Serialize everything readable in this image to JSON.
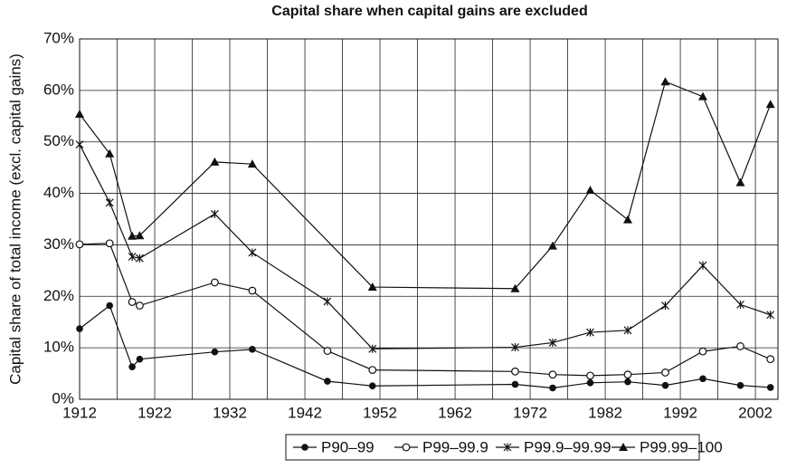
{
  "chart_data": {
    "type": "line",
    "title": "Capital share when capital gains are excluded",
    "y_label": "Capital share of total income (excl. capital gains)",
    "x": [
      1912,
      1916,
      1919,
      1920,
      1930,
      1935,
      1945,
      1951,
      1970,
      1975,
      1980,
      1985,
      1990,
      1995,
      2000,
      2004
    ],
    "series": [
      {
        "name": "P90–99",
        "color": "#111111",
        "marker": "circle-filled",
        "values": [
          13.7,
          18.2,
          6.3,
          7.8,
          9.2,
          9.7,
          3.5,
          2.6,
          2.9,
          2.2,
          3.2,
          3.4,
          2.7,
          4.0,
          2.7,
          2.3
        ]
      },
      {
        "name": "P99–99.9",
        "color": "#111111",
        "marker": "circle-open",
        "values": [
          30.1,
          30.3,
          18.9,
          18.2,
          22.7,
          21.1,
          9.4,
          5.7,
          5.4,
          4.8,
          4.6,
          4.8,
          5.2,
          9.3,
          10.3,
          7.8
        ]
      },
      {
        "name": "P99.9–99.99",
        "color": "#111111",
        "marker": "star",
        "values": [
          49.5,
          38.2,
          27.7,
          27.4,
          36.0,
          28.5,
          19.0,
          9.8,
          10.1,
          11.0,
          13.0,
          13.4,
          18.2,
          26.0,
          18.4,
          16.4
        ]
      },
      {
        "name": "P99.99–100",
        "color": "#111111",
        "marker": "triangle",
        "x": [
          1912,
          1916,
          1919,
          1920,
          1930,
          1935,
          1951,
          1970,
          1975,
          1980,
          1985,
          1990,
          1995,
          2000,
          2004
        ],
        "values": [
          55.4,
          47.7,
          31.7,
          31.8,
          46.1,
          45.7,
          21.8,
          21.5,
          29.8,
          40.6,
          34.9,
          61.7,
          58.8,
          42.1,
          57.3
        ]
      }
    ],
    "xlim": [
      1912,
      2005
    ],
    "xticks": [
      1912,
      1922,
      1932,
      1942,
      1952,
      1962,
      1972,
      1982,
      1992,
      2002
    ],
    "x_minor_grid": [
      1917,
      1927,
      1937,
      1947,
      1957,
      1967,
      1977,
      1987,
      1997
    ],
    "ylim": [
      0,
      70
    ],
    "yticks": [
      {
        "value": 0,
        "label": "0%"
      },
      {
        "value": 10,
        "label": "10%"
      },
      {
        "value": 20,
        "label": "20%"
      },
      {
        "value": 30,
        "label": "30%"
      },
      {
        "value": 40,
        "label": "40%"
      },
      {
        "value": 50,
        "label": "50%"
      },
      {
        "value": 60,
        "label": "60%"
      },
      {
        "value": 70,
        "label": "70%"
      }
    ],
    "grid": true,
    "legend": "bottom"
  }
}
